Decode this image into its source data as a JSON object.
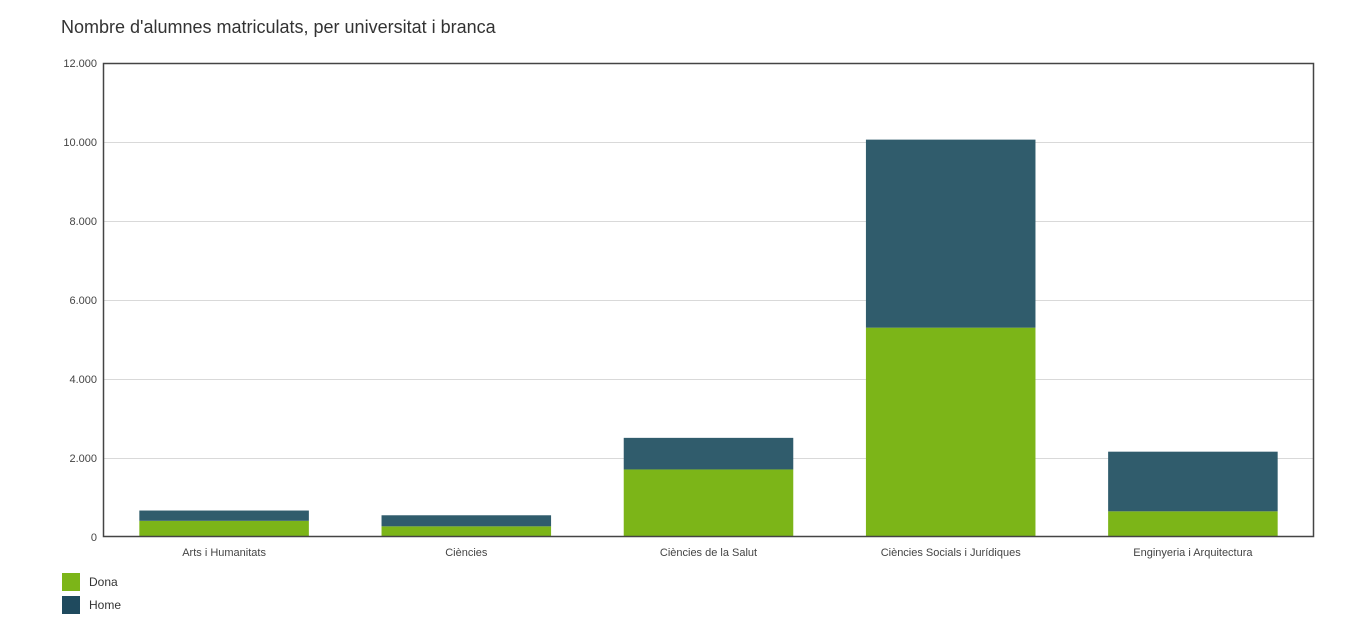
{
  "chart_data": {
    "type": "bar",
    "stacked": true,
    "title": "Nombre d'alumnes matriculats, per universitat i branca",
    "xlabel": "",
    "ylabel": "",
    "categories": [
      "Arts i Humanitats",
      "Ciències",
      "Ciències de la Salut",
      "Ciències Socials i Jurídiques",
      "Enginyeria i Arquitectura"
    ],
    "series": [
      {
        "name": "Dona",
        "color": "#7cb518",
        "values": [
          410,
          270,
          1710,
          5300,
          650
        ]
      },
      {
        "name": "Home",
        "color": "#305c6c",
        "values": [
          260,
          280,
          800,
          4760,
          1510
        ]
      }
    ],
    "ylim": [
      0,
      12000
    ],
    "yticks": [
      0,
      2000,
      4000,
      6000,
      8000,
      10000,
      12000
    ],
    "ytick_labels": [
      "0",
      "2.000",
      "4.000",
      "6.000",
      "8.000",
      "10.000",
      "12.000"
    ],
    "grid": true,
    "legend_position": "bottom-left"
  },
  "legend": {
    "items": [
      {
        "label": "Dona",
        "color": "#7cb518"
      },
      {
        "label": "Home",
        "color": "#1f4a5e"
      }
    ]
  }
}
